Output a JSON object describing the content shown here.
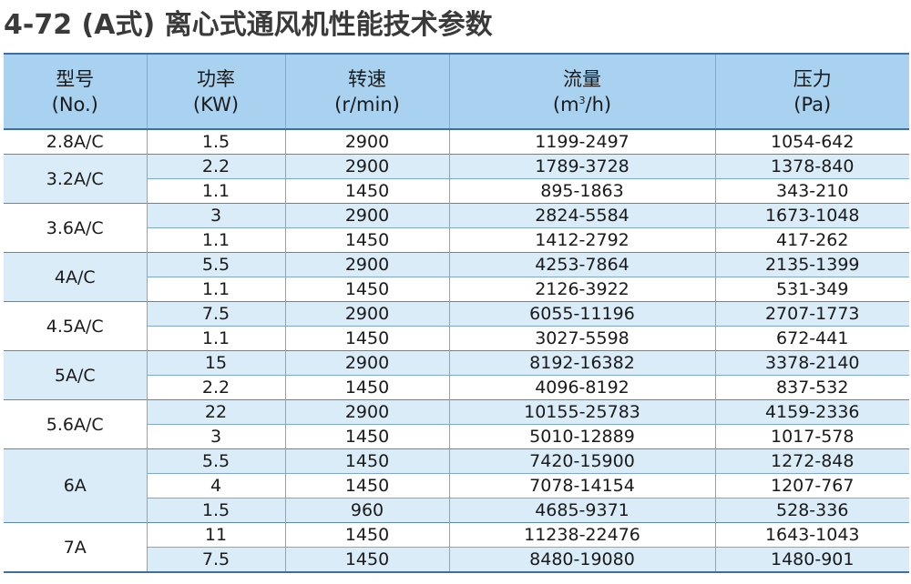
{
  "title": "4-72 (A式) 离心式通风机性能技术参数",
  "headers": {
    "model": {
      "line1": "型号",
      "line2": "(No.)"
    },
    "power": {
      "line1": "功率",
      "line2": "(KW)"
    },
    "speed": {
      "line1": "转速",
      "line2": "(r/min)"
    },
    "flow": {
      "line1": "流量",
      "line2_pre": "(m",
      "line2_sup": "3",
      "line2_post": "/h)"
    },
    "pressure": {
      "line1": "压力",
      "line2": "(Pa)"
    }
  },
  "groups": [
    {
      "model": "2.8A/C",
      "rows": [
        {
          "power": "1.5",
          "speed": "2900",
          "flow": "1199-2497",
          "pressure": "1054-642"
        }
      ]
    },
    {
      "model": "3.2A/C",
      "rows": [
        {
          "power": "2.2",
          "speed": "2900",
          "flow": "1789-3728",
          "pressure": "1378-840"
        },
        {
          "power": "1.1",
          "speed": "1450",
          "flow": "895-1863",
          "pressure": "343-210"
        }
      ]
    },
    {
      "model": "3.6A/C",
      "rows": [
        {
          "power": "3",
          "speed": "2900",
          "flow": "2824-5584",
          "pressure": "1673-1048"
        },
        {
          "power": "1.1",
          "speed": "1450",
          "flow": "1412-2792",
          "pressure": "417-262"
        }
      ]
    },
    {
      "model": "4A/C",
      "rows": [
        {
          "power": "5.5",
          "speed": "2900",
          "flow": "4253-7864",
          "pressure": "2135-1399"
        },
        {
          "power": "1.1",
          "speed": "1450",
          "flow": "2126-3922",
          "pressure": "531-349"
        }
      ]
    },
    {
      "model": "4.5A/C",
      "rows": [
        {
          "power": "7.5",
          "speed": "2900",
          "flow": "6055-11196",
          "pressure": "2707-1773"
        },
        {
          "power": "1.1",
          "speed": "1450",
          "flow": "3027-5598",
          "pressure": "672-441"
        }
      ]
    },
    {
      "model": "5A/C",
      "rows": [
        {
          "power": "15",
          "speed": "2900",
          "flow": "8192-16382",
          "pressure": "3378-2140"
        },
        {
          "power": "2.2",
          "speed": "1450",
          "flow": "4096-8192",
          "pressure": "837-532"
        }
      ]
    },
    {
      "model": "5.6A/C",
      "rows": [
        {
          "power": "22",
          "speed": "2900",
          "flow": "10155-25783",
          "pressure": "4159-2336"
        },
        {
          "power": "3",
          "speed": "1450",
          "flow": "5010-12889",
          "pressure": "1017-578"
        }
      ]
    },
    {
      "model": "6A",
      "rows": [
        {
          "power": "5.5",
          "speed": "1450",
          "flow": "7420-15900",
          "pressure": "1272-848"
        },
        {
          "power": "4",
          "speed": "1450",
          "flow": "7078-14154",
          "pressure": "1207-767"
        },
        {
          "power": "1.5",
          "speed": "960",
          "flow": "4685-9371",
          "pressure": "528-336"
        }
      ]
    },
    {
      "model": "7A",
      "rows": [
        {
          "power": "11",
          "speed": "1450",
          "flow": "11238-22476",
          "pressure": "1643-1043"
        },
        {
          "power": "7.5",
          "speed": "1450",
          "flow": "8480-19080",
          "pressure": "1480-901"
        }
      ]
    }
  ],
  "colors": {
    "header_bg": "#a9d2f0",
    "stripe_bg": "#dbecf9",
    "rule": "#3f6ea5"
  }
}
